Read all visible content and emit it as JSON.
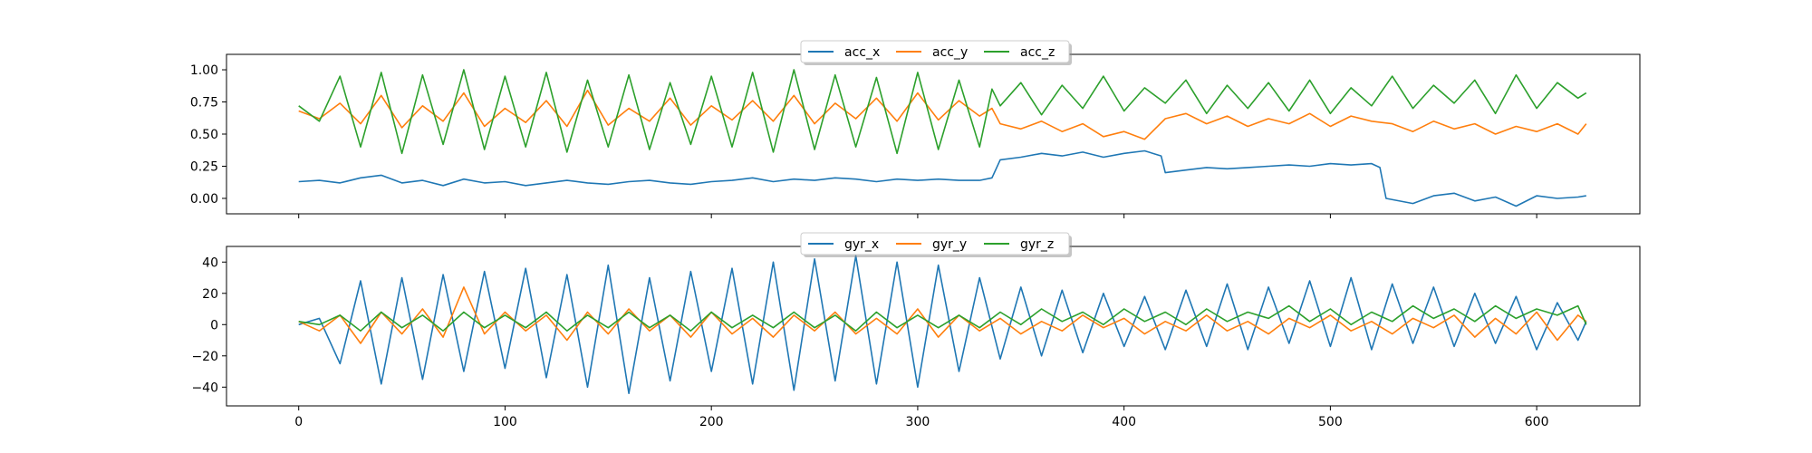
{
  "chart_data": [
    {
      "type": "line",
      "title": "",
      "xlabel": "",
      "ylabel": "",
      "xlim": [
        -35,
        650
      ],
      "ylim": [
        -0.12,
        1.12
      ],
      "grid": false,
      "legend": {
        "placement": "top-center",
        "columns": 3
      },
      "xticks": [
        0,
        100,
        200,
        300,
        400,
        500,
        600
      ],
      "xtick_labels": [
        "",
        "",
        "",
        "",
        "",
        "",
        ""
      ],
      "yticks": [
        0.0,
        0.25,
        0.5,
        0.75,
        1.0
      ],
      "ytick_labels": [
        "0.00",
        "0.25",
        "0.50",
        "0.75",
        "1.00"
      ],
      "series": [
        {
          "name": "acc_x",
          "color": "#1f77b4",
          "x": [
            0,
            10,
            20,
            30,
            40,
            50,
            60,
            70,
            80,
            90,
            100,
            110,
            120,
            130,
            140,
            150,
            160,
            170,
            180,
            190,
            200,
            210,
            220,
            230,
            240,
            250,
            260,
            270,
            280,
            290,
            300,
            310,
            320,
            330,
            336,
            340,
            350,
            360,
            370,
            380,
            390,
            400,
            410,
            418,
            420,
            430,
            440,
            450,
            460,
            470,
            480,
            490,
            500,
            510,
            520,
            524,
            527,
            540,
            550,
            560,
            570,
            580,
            590,
            600,
            610,
            620,
            624
          ],
          "y": [
            0.13,
            0.14,
            0.12,
            0.16,
            0.18,
            0.12,
            0.14,
            0.1,
            0.15,
            0.12,
            0.13,
            0.1,
            0.12,
            0.14,
            0.12,
            0.11,
            0.13,
            0.14,
            0.12,
            0.11,
            0.13,
            0.14,
            0.16,
            0.13,
            0.15,
            0.14,
            0.16,
            0.15,
            0.13,
            0.15,
            0.14,
            0.15,
            0.14,
            0.14,
            0.16,
            0.3,
            0.32,
            0.35,
            0.33,
            0.36,
            0.32,
            0.35,
            0.37,
            0.33,
            0.2,
            0.22,
            0.24,
            0.23,
            0.24,
            0.25,
            0.26,
            0.25,
            0.27,
            0.26,
            0.27,
            0.24,
            0.0,
            -0.04,
            0.02,
            0.04,
            -0.02,
            0.01,
            -0.06,
            0.02,
            0.0,
            0.01,
            0.02
          ]
        },
        {
          "name": "acc_y",
          "color": "#ff7f0e",
          "x": [
            0,
            10,
            20,
            30,
            40,
            50,
            60,
            70,
            80,
            90,
            100,
            110,
            120,
            130,
            140,
            150,
            160,
            170,
            180,
            190,
            200,
            210,
            220,
            230,
            240,
            250,
            260,
            270,
            280,
            290,
            300,
            310,
            320,
            330,
            336,
            340,
            350,
            360,
            370,
            380,
            390,
            400,
            410,
            420,
            430,
            440,
            450,
            460,
            470,
            480,
            490,
            500,
            510,
            520,
            530,
            540,
            550,
            560,
            570,
            580,
            590,
            600,
            610,
            620,
            624
          ],
          "y": [
            0.68,
            0.62,
            0.74,
            0.58,
            0.8,
            0.55,
            0.72,
            0.6,
            0.82,
            0.56,
            0.7,
            0.59,
            0.76,
            0.56,
            0.84,
            0.57,
            0.7,
            0.6,
            0.78,
            0.57,
            0.72,
            0.61,
            0.76,
            0.6,
            0.8,
            0.58,
            0.74,
            0.62,
            0.78,
            0.6,
            0.82,
            0.61,
            0.76,
            0.64,
            0.7,
            0.58,
            0.54,
            0.6,
            0.52,
            0.58,
            0.48,
            0.52,
            0.46,
            0.62,
            0.66,
            0.58,
            0.64,
            0.56,
            0.62,
            0.58,
            0.66,
            0.56,
            0.64,
            0.6,
            0.58,
            0.52,
            0.6,
            0.54,
            0.58,
            0.5,
            0.56,
            0.52,
            0.58,
            0.5,
            0.58
          ]
        },
        {
          "name": "acc_z",
          "color": "#2ca02c",
          "x": [
            0,
            10,
            20,
            30,
            40,
            50,
            60,
            70,
            80,
            90,
            100,
            110,
            120,
            130,
            140,
            150,
            160,
            170,
            180,
            190,
            200,
            210,
            220,
            230,
            240,
            250,
            260,
            270,
            280,
            290,
            300,
            310,
            320,
            330,
            336,
            340,
            350,
            360,
            370,
            380,
            390,
            400,
            410,
            420,
            430,
            440,
            450,
            460,
            470,
            480,
            490,
            500,
            510,
            520,
            530,
            540,
            550,
            560,
            570,
            580,
            590,
            600,
            610,
            620,
            624
          ],
          "y": [
            0.72,
            0.6,
            0.95,
            0.4,
            0.98,
            0.35,
            0.96,
            0.42,
            1.0,
            0.38,
            0.95,
            0.4,
            0.98,
            0.36,
            0.92,
            0.4,
            0.96,
            0.38,
            0.9,
            0.42,
            0.95,
            0.4,
            0.98,
            0.36,
            1.0,
            0.38,
            0.96,
            0.4,
            0.94,
            0.35,
            0.98,
            0.38,
            0.92,
            0.4,
            0.85,
            0.72,
            0.9,
            0.65,
            0.88,
            0.7,
            0.95,
            0.68,
            0.86,
            0.74,
            0.92,
            0.66,
            0.88,
            0.7,
            0.9,
            0.68,
            0.92,
            0.66,
            0.86,
            0.72,
            0.95,
            0.7,
            0.88,
            0.74,
            0.92,
            0.66,
            0.96,
            0.7,
            0.9,
            0.78,
            0.82
          ]
        }
      ]
    },
    {
      "type": "line",
      "title": "",
      "xlabel": "",
      "ylabel": "",
      "xlim": [
        -35,
        650
      ],
      "ylim": [
        -52,
        50
      ],
      "grid": false,
      "legend": {
        "placement": "top-center",
        "columns": 3
      },
      "xticks": [
        0,
        100,
        200,
        300,
        400,
        500,
        600
      ],
      "xtick_labels": [
        "0",
        "100",
        "200",
        "300",
        "400",
        "500",
        "600"
      ],
      "yticks": [
        -40,
        -20,
        0,
        20,
        40
      ],
      "ytick_labels": [
        "−40",
        "−20",
        "0",
        "20",
        "40"
      ],
      "series": [
        {
          "name": "gyr_x",
          "color": "#1f77b4",
          "x": [
            0,
            10,
            20,
            30,
            40,
            50,
            60,
            70,
            80,
            90,
            100,
            110,
            120,
            130,
            140,
            150,
            160,
            170,
            180,
            190,
            200,
            210,
            220,
            230,
            240,
            250,
            260,
            270,
            280,
            290,
            300,
            310,
            320,
            330,
            340,
            350,
            360,
            370,
            380,
            390,
            400,
            410,
            420,
            430,
            440,
            450,
            460,
            470,
            480,
            490,
            500,
            510,
            520,
            530,
            540,
            550,
            560,
            570,
            580,
            590,
            600,
            610,
            620,
            624
          ],
          "y": [
            0,
            4,
            -25,
            28,
            -38,
            30,
            -35,
            32,
            -30,
            34,
            -28,
            36,
            -34,
            32,
            -40,
            38,
            -44,
            30,
            -36,
            34,
            -30,
            36,
            -38,
            40,
            -42,
            42,
            -36,
            44,
            -38,
            40,
            -40,
            38,
            -30,
            30,
            -22,
            24,
            -20,
            22,
            -18,
            20,
            -14,
            18,
            -16,
            22,
            -14,
            26,
            -16,
            24,
            -12,
            28,
            -14,
            30,
            -16,
            26,
            -12,
            24,
            -14,
            20,
            -12,
            18,
            -16,
            14,
            -10,
            2
          ]
        },
        {
          "name": "gyr_y",
          "color": "#ff7f0e",
          "x": [
            0,
            10,
            20,
            30,
            40,
            50,
            60,
            70,
            80,
            90,
            100,
            110,
            120,
            130,
            140,
            150,
            160,
            170,
            180,
            190,
            200,
            210,
            220,
            230,
            240,
            250,
            260,
            270,
            280,
            290,
            300,
            310,
            320,
            330,
            340,
            350,
            360,
            370,
            380,
            390,
            400,
            410,
            420,
            430,
            440,
            450,
            460,
            470,
            480,
            490,
            500,
            510,
            520,
            530,
            540,
            550,
            560,
            570,
            580,
            590,
            600,
            610,
            620,
            624
          ],
          "y": [
            2,
            -4,
            6,
            -12,
            8,
            -6,
            10,
            -8,
            24,
            -6,
            8,
            -4,
            6,
            -10,
            8,
            -6,
            10,
            -4,
            6,
            -8,
            8,
            -6,
            4,
            -8,
            6,
            -4,
            8,
            -6,
            4,
            -6,
            10,
            -8,
            6,
            -4,
            4,
            -6,
            2,
            -4,
            6,
            -2,
            4,
            -6,
            2,
            -4,
            6,
            -4,
            2,
            -6,
            4,
            -2,
            6,
            -4,
            2,
            -6,
            4,
            -2,
            6,
            -8,
            4,
            -6,
            8,
            -10,
            6,
            2
          ]
        },
        {
          "name": "gyr_z",
          "color": "#2ca02c",
          "x": [
            0,
            10,
            20,
            30,
            40,
            50,
            60,
            70,
            80,
            90,
            100,
            110,
            120,
            130,
            140,
            150,
            160,
            170,
            180,
            190,
            200,
            210,
            220,
            230,
            240,
            250,
            260,
            270,
            280,
            290,
            300,
            310,
            320,
            330,
            340,
            350,
            360,
            370,
            380,
            390,
            400,
            410,
            420,
            430,
            440,
            450,
            460,
            470,
            480,
            490,
            500,
            510,
            520,
            530,
            540,
            550,
            560,
            570,
            580,
            590,
            600,
            610,
            620,
            624
          ],
          "y": [
            2,
            0,
            6,
            -4,
            8,
            -2,
            6,
            -4,
            8,
            -2,
            6,
            -2,
            8,
            -4,
            6,
            -2,
            8,
            -2,
            6,
            -4,
            8,
            -2,
            6,
            -2,
            8,
            -2,
            6,
            -4,
            8,
            -2,
            6,
            -2,
            6,
            -2,
            8,
            0,
            10,
            2,
            8,
            0,
            10,
            2,
            8,
            0,
            10,
            2,
            8,
            4,
            12,
            2,
            10,
            0,
            8,
            2,
            12,
            4,
            10,
            2,
            12,
            4,
            10,
            6,
            12,
            0
          ]
        }
      ]
    }
  ]
}
